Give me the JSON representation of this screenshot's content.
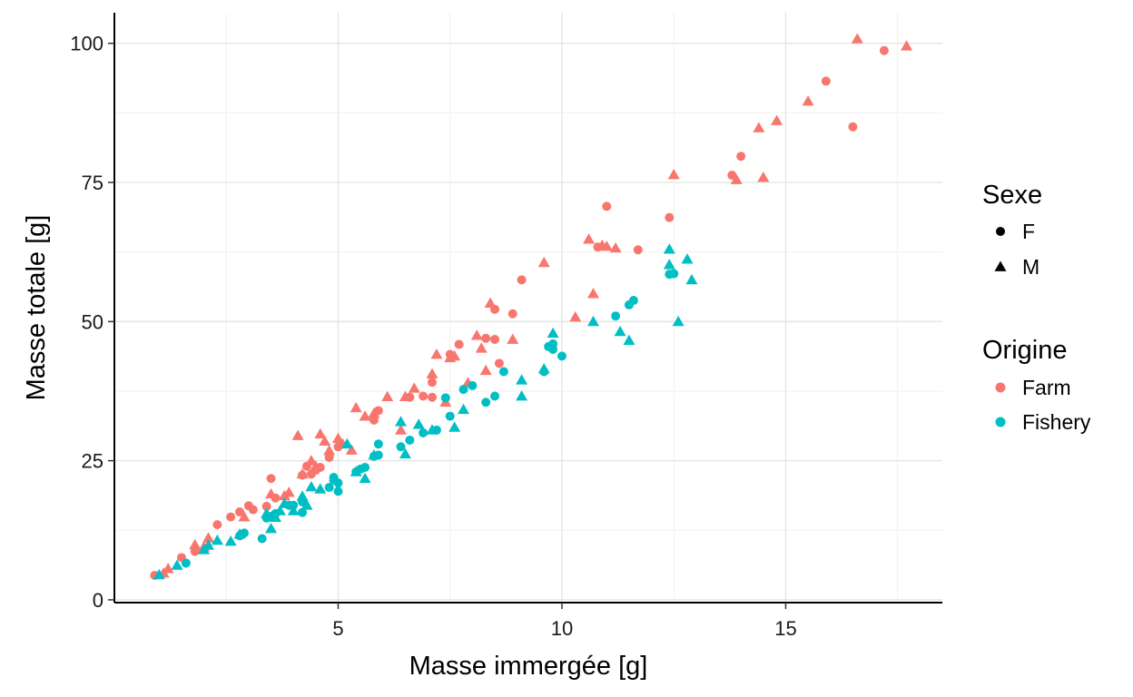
{
  "chart_data": {
    "type": "scatter",
    "xlabel": "Masse immergée  [g]",
    "ylabel": "Masse totale  [g]",
    "xlim": [
      0.0,
      18.5
    ],
    "ylim": [
      -0.5,
      105.5
    ],
    "xticks": [
      5,
      10,
      15
    ],
    "yticks": [
      0,
      25,
      50,
      75,
      100
    ],
    "xtick_labels": [
      "5",
      "10",
      "15"
    ],
    "ytick_labels": [
      "0",
      "25",
      "50",
      "75",
      "100"
    ],
    "grid": true,
    "legend": {
      "position": "right",
      "groups": [
        {
          "title": "Sexe",
          "items": [
            {
              "label": "F",
              "shape": "circle"
            },
            {
              "label": "M",
              "shape": "triangle"
            }
          ]
        },
        {
          "title": "Origine",
          "items": [
            {
              "label": "Farm",
              "color": "#F8766D"
            },
            {
              "label": "Fishery",
              "color": "#00BFC4"
            }
          ]
        }
      ]
    },
    "colors": {
      "Farm": "#F8766D",
      "Fishery": "#00BFC4"
    },
    "series": [
      {
        "name": "Farm",
        "sexe": "F",
        "points": [
          [
            0.9,
            4.4
          ],
          [
            1.5,
            7.6
          ],
          [
            1.8,
            8.7
          ],
          [
            2.3,
            13.5
          ],
          [
            2.6,
            14.9
          ],
          [
            2.8,
            15.8
          ],
          [
            3.0,
            16.9
          ],
          [
            3.1,
            16.2
          ],
          [
            3.4,
            16.8
          ],
          [
            3.5,
            21.8
          ],
          [
            3.6,
            18.3
          ],
          [
            4.2,
            22.4
          ],
          [
            4.3,
            24.0
          ],
          [
            4.4,
            22.6
          ],
          [
            4.5,
            23.3
          ],
          [
            4.6,
            23.8
          ],
          [
            4.8,
            25.6
          ],
          [
            5.0,
            27.5
          ],
          [
            5.8,
            32.3
          ],
          [
            5.9,
            34.0
          ],
          [
            6.6,
            36.4
          ],
          [
            6.9,
            36.6
          ],
          [
            7.1,
            39.1
          ],
          [
            7.1,
            36.4
          ],
          [
            7.5,
            44.1
          ],
          [
            7.7,
            45.9
          ],
          [
            8.3,
            47.0
          ],
          [
            8.5,
            52.2
          ],
          [
            8.5,
            46.8
          ],
          [
            8.6,
            42.5
          ],
          [
            8.9,
            51.4
          ],
          [
            9.1,
            57.5
          ],
          [
            10.8,
            63.4
          ],
          [
            11.0,
            70.7
          ],
          [
            11.7,
            62.9
          ],
          [
            12.4,
            68.7
          ],
          [
            13.8,
            76.3
          ],
          [
            14.0,
            79.7
          ],
          [
            15.9,
            93.2
          ],
          [
            16.5,
            85.0
          ],
          [
            17.2,
            98.7
          ]
        ]
      },
      {
        "name": "Farm",
        "sexe": "M",
        "points": [
          [
            1.1,
            4.8
          ],
          [
            1.2,
            5.6
          ],
          [
            1.8,
            9.9
          ],
          [
            2.0,
            9.5
          ],
          [
            2.1,
            11.1
          ],
          [
            2.9,
            14.9
          ],
          [
            3.5,
            19.0
          ],
          [
            3.8,
            18.7
          ],
          [
            3.9,
            19.3
          ],
          [
            4.1,
            29.5
          ],
          [
            4.2,
            22.6
          ],
          [
            4.4,
            25.0
          ],
          [
            4.5,
            24.0
          ],
          [
            4.6,
            29.8
          ],
          [
            4.7,
            28.5
          ],
          [
            4.8,
            26.8
          ],
          [
            5.0,
            29.0
          ],
          [
            5.1,
            28.0
          ],
          [
            5.3,
            26.9
          ],
          [
            5.4,
            34.5
          ],
          [
            5.6,
            33.0
          ],
          [
            5.8,
            33.5
          ],
          [
            6.1,
            36.5
          ],
          [
            6.4,
            30.5
          ],
          [
            6.5,
            36.5
          ],
          [
            6.7,
            38.0
          ],
          [
            7.1,
            40.6
          ],
          [
            7.2,
            44.1
          ],
          [
            7.4,
            35.5
          ],
          [
            7.5,
            43.5
          ],
          [
            7.6,
            43.8
          ],
          [
            7.9,
            39.0
          ],
          [
            8.1,
            47.5
          ],
          [
            8.2,
            45.2
          ],
          [
            8.3,
            41.2
          ],
          [
            8.4,
            53.3
          ],
          [
            8.9,
            46.8
          ],
          [
            9.6,
            60.6
          ],
          [
            10.3,
            50.8
          ],
          [
            10.6,
            64.8
          ],
          [
            10.7,
            55.0
          ],
          [
            10.9,
            63.7
          ],
          [
            11.0,
            63.5
          ],
          [
            11.2,
            63.2
          ],
          [
            12.5,
            76.4
          ],
          [
            13.9,
            75.5
          ],
          [
            14.4,
            84.8
          ],
          [
            14.5,
            75.9
          ],
          [
            14.8,
            86.1
          ],
          [
            15.5,
            89.6
          ],
          [
            16.6,
            100.8
          ],
          [
            17.7,
            99.5
          ]
        ]
      },
      {
        "name": "Fishery",
        "sexe": "F",
        "points": [
          [
            1.6,
            6.6
          ],
          [
            2.8,
            11.5
          ],
          [
            2.9,
            12.0
          ],
          [
            3.3,
            11.0
          ],
          [
            3.4,
            14.7
          ],
          [
            3.5,
            15.0
          ],
          [
            3.6,
            15.5
          ],
          [
            3.9,
            17.0
          ],
          [
            4.0,
            17.0
          ],
          [
            4.2,
            17.6
          ],
          [
            4.2,
            15.7
          ],
          [
            4.8,
            20.2
          ],
          [
            4.9,
            22.0
          ],
          [
            4.9,
            21.5
          ],
          [
            5.0,
            21.0
          ],
          [
            5.0,
            19.5
          ],
          [
            5.4,
            23.0
          ],
          [
            5.5,
            23.5
          ],
          [
            5.6,
            23.8
          ],
          [
            5.8,
            25.8
          ],
          [
            5.9,
            28.0
          ],
          [
            5.9,
            26.0
          ],
          [
            6.4,
            27.5
          ],
          [
            6.6,
            28.7
          ],
          [
            6.9,
            30.0
          ],
          [
            7.2,
            30.5
          ],
          [
            7.4,
            36.3
          ],
          [
            7.5,
            33.0
          ],
          [
            7.8,
            37.8
          ],
          [
            8.0,
            38.5
          ],
          [
            8.3,
            35.5
          ],
          [
            8.5,
            36.6
          ],
          [
            8.7,
            41.0
          ],
          [
            9.6,
            41.0
          ],
          [
            9.7,
            45.5
          ],
          [
            9.8,
            46.0
          ],
          [
            9.8,
            45.0
          ],
          [
            10.0,
            43.8
          ],
          [
            11.2,
            51.0
          ],
          [
            11.5,
            53.0
          ],
          [
            11.6,
            53.8
          ],
          [
            12.4,
            58.5
          ],
          [
            12.5,
            58.6
          ]
        ]
      },
      {
        "name": "Fishery",
        "sexe": "M",
        "points": [
          [
            1.0,
            4.5
          ],
          [
            1.4,
            6.2
          ],
          [
            2.0,
            9.0
          ],
          [
            2.1,
            9.8
          ],
          [
            2.3,
            10.7
          ],
          [
            2.6,
            10.5
          ],
          [
            2.8,
            11.8
          ],
          [
            3.4,
            15.5
          ],
          [
            3.5,
            12.8
          ],
          [
            3.6,
            14.8
          ],
          [
            3.7,
            16.0
          ],
          [
            3.8,
            17.3
          ],
          [
            4.0,
            16.0
          ],
          [
            4.2,
            18.6
          ],
          [
            4.3,
            17.0
          ],
          [
            4.4,
            20.3
          ],
          [
            4.6,
            19.9
          ],
          [
            5.2,
            28.0
          ],
          [
            5.4,
            23.0
          ],
          [
            5.6,
            21.8
          ],
          [
            5.8,
            26.0
          ],
          [
            6.4,
            32.0
          ],
          [
            6.5,
            26.2
          ],
          [
            6.8,
            31.5
          ],
          [
            7.1,
            30.5
          ],
          [
            7.6,
            31.0
          ],
          [
            7.8,
            34.2
          ],
          [
            9.1,
            39.5
          ],
          [
            9.1,
            36.6
          ],
          [
            9.6,
            41.5
          ],
          [
            9.8,
            47.9
          ],
          [
            10.7,
            50.0
          ],
          [
            11.3,
            48.2
          ],
          [
            11.5,
            46.6
          ],
          [
            12.4,
            63.0
          ],
          [
            12.4,
            60.2
          ],
          [
            12.6,
            50.0
          ],
          [
            12.8,
            61.2
          ],
          [
            12.9,
            57.5
          ]
        ]
      }
    ]
  }
}
